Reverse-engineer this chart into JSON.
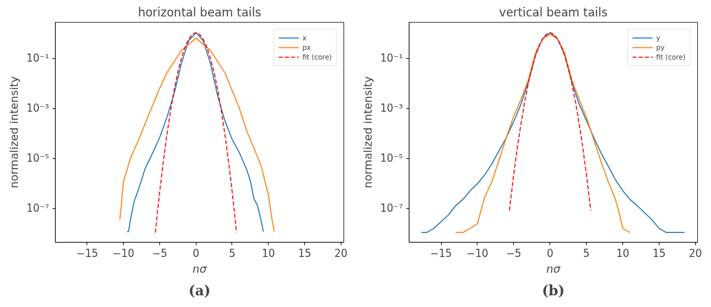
{
  "chart_data": [
    {
      "type": "line",
      "title": "horizontal beam tails",
      "xlabel": "nσ",
      "ylabel": "normalized intensity",
      "log": "y",
      "grid": false,
      "legend": "top right",
      "xlim": [
        -19.4,
        20.4
      ],
      "ylim": [
        4.5e-09,
        2.8
      ],
      "xticks": [
        {
          "value": -15,
          "label": "−15"
        },
        {
          "value": -10,
          "label": "−10"
        },
        {
          "value": -5,
          "label": "−5"
        },
        0,
        5,
        10,
        15,
        20
      ],
      "yticks": [
        {
          "value": 0.1,
          "label": "10⁻¹"
        },
        {
          "value": 0.001,
          "label": "10⁻³"
        },
        {
          "value": 1e-05,
          "label": "10⁻⁵"
        },
        {
          "value": 1e-07,
          "label": "10⁻⁷"
        }
      ],
      "annotations": [
        "(a)"
      ],
      "series": [
        {
          "name": "x",
          "color": "#1f77b4",
          "line_style": "solid",
          "x": [
            -9.5,
            -9.3,
            -9,
            -8.5,
            -8,
            -7.5,
            -7,
            -6,
            -5,
            -4,
            -3,
            -2,
            -1,
            0,
            1,
            2,
            3,
            4,
            5,
            6,
            7,
            7.5,
            8,
            8.5,
            9,
            9.3
          ],
          "values": [
            1.2e-08,
            1.2e-08,
            4e-08,
            2e-07,
            5e-07,
            1.4e-06,
            4e-06,
            1.6e-05,
            7e-05,
            0.00045,
            0.004,
            0.063,
            0.52,
            1.07,
            0.52,
            0.063,
            0.0032,
            0.00032,
            5.8e-05,
            1.7e-05,
            3.6e-06,
            1.3e-06,
            2.5e-07,
            1.3e-07,
            3.2e-08,
            1.2e-08
          ]
        },
        {
          "name": "px",
          "color": "#ff7f0e",
          "line_style": "solid",
          "x": [
            -10.5,
            -10.3,
            -10,
            -9,
            -8,
            -7,
            -6,
            -5,
            -4,
            -2,
            0,
            2,
            4,
            5,
            6,
            7,
            8,
            9,
            10,
            10.5,
            10.8
          ],
          "values": [
            3.6e-08,
            1.3e-07,
            1.2e-06,
            1.1e-05,
            4.8e-05,
            0.00025,
            0.0013,
            0.0065,
            0.027,
            0.21,
            0.65,
            0.21,
            0.027,
            0.0052,
            0.001,
            0.00013,
            2.6e-05,
            5e-06,
            3.5e-07,
            3.6e-08,
            1.2e-08
          ]
        },
        {
          "name": "fit (core)",
          "color": "#ff0000",
          "line_style": "dashed",
          "x": [
            -5.6,
            -5,
            -4.5,
            -4,
            -3.5,
            -3,
            -2.5,
            -2,
            -1.5,
            -1,
            -0.5,
            0,
            0.5,
            1,
            1.5,
            2,
            2.5,
            3,
            3.5,
            4,
            4.5,
            5,
            5.6
          ],
          "values": [
            1.1e-08,
            4.7e-07,
            7.6e-06,
            9.1e-05,
            0.00081,
            0.0055,
            0.028,
            0.1,
            0.29,
            0.59,
            0.93,
            1.07,
            0.93,
            0.59,
            0.29,
            0.1,
            0.028,
            0.0055,
            0.00081,
            9.1e-05,
            7.6e-06,
            4.7e-07,
            1.1e-08
          ]
        }
      ]
    },
    {
      "type": "line",
      "title": "vertical beam tails",
      "xlabel": "nσ",
      "ylabel": "normalized intensity",
      "log": "y",
      "grid": false,
      "legend": "top right",
      "xlim": [
        -19.4,
        20.3
      ],
      "ylim": [
        4.5e-09,
        2.8
      ],
      "xticks": [
        {
          "value": -15,
          "label": "−15"
        },
        {
          "value": -10,
          "label": "−10"
        },
        {
          "value": -5,
          "label": "−5"
        },
        0,
        5,
        10,
        15,
        20
      ],
      "yticks": [
        {
          "value": 0.1,
          "label": "10⁻¹"
        },
        {
          "value": 0.001,
          "label": "10⁻³"
        },
        {
          "value": 1e-05,
          "label": "10⁻⁵"
        },
        {
          "value": 1e-07,
          "label": "10⁻⁷"
        }
      ],
      "annotations": [
        "(b)"
      ],
      "series": [
        {
          "name": "y",
          "color": "#1f77b4",
          "line_style": "solid",
          "x": [
            -17.7,
            -17,
            -16,
            -15,
            -14,
            -13,
            -12,
            -11,
            -10,
            -9,
            -8,
            -7,
            -6,
            -5,
            -4,
            -3,
            -2,
            -1,
            0,
            1,
            2,
            3,
            4,
            5,
            6,
            7,
            8,
            9,
            10,
            11,
            12,
            13,
            14,
            15,
            16,
            18.5
          ],
          "values": [
            1.1e-08,
            1.1e-08,
            1.6e-08,
            3e-08,
            5.5e-08,
            1.3e-07,
            2.3e-07,
            5.2e-07,
            9.8e-07,
            2.2e-06,
            6.2e-06,
            2.1e-05,
            7.1e-05,
            0.0003,
            0.0015,
            0.011,
            0.14,
            0.63,
            1.07,
            0.63,
            0.14,
            0.011,
            0.0015,
            0.00033,
            7.1e-05,
            1.7e-05,
            5e-06,
            1.4e-06,
            5.2e-07,
            2.3e-07,
            1.3e-07,
            6.8e-08,
            3.6e-08,
            1.6e-08,
            1.1e-08,
            1.1e-08
          ]
        },
        {
          "name": "py",
          "color": "#ff7f0e",
          "line_style": "solid",
          "x": [
            -13,
            -12,
            -11,
            -10,
            -9,
            -8,
            -7,
            -6,
            -5,
            -4,
            -3,
            -2,
            -1,
            0,
            1,
            2,
            3,
            4,
            5,
            6,
            7,
            8,
            9,
            9.5,
            10,
            11
          ],
          "values": [
            1.1e-08,
            1.1e-08,
            1.6e-08,
            2.5e-08,
            2.8e-07,
            1.2e-06,
            9.1e-06,
            7.1e-05,
            0.0005,
            0.0023,
            0.014,
            0.17,
            0.62,
            0.91,
            0.62,
            0.17,
            0.014,
            0.0023,
            0.00045,
            5.8e-05,
            7.6e-06,
            1.2e-06,
            2.3e-07,
            6.8e-08,
            1.6e-08,
            1.1e-08
          ]
        },
        {
          "name": "fit (core)",
          "color": "#ff0000",
          "line_style": "dashed",
          "x": [
            -5.6,
            -5,
            -4.5,
            -4,
            -3.5,
            -3,
            -2.5,
            -2,
            -1.5,
            -1,
            -0.5,
            0,
            0.5,
            1,
            1.5,
            2,
            2.5,
            3,
            3.5,
            4,
            4.5,
            5,
            5.6
          ],
          "values": [
            8.3e-08,
            2.3e-06,
            2.8e-05,
            0.00025,
            0.0018,
            0.0098,
            0.041,
            0.13,
            0.33,
            0.63,
            0.93,
            1.07,
            0.93,
            0.63,
            0.33,
            0.13,
            0.041,
            0.0098,
            0.0018,
            0.00025,
            2.8e-05,
            2.3e-06,
            8.3e-08
          ]
        }
      ]
    }
  ]
}
